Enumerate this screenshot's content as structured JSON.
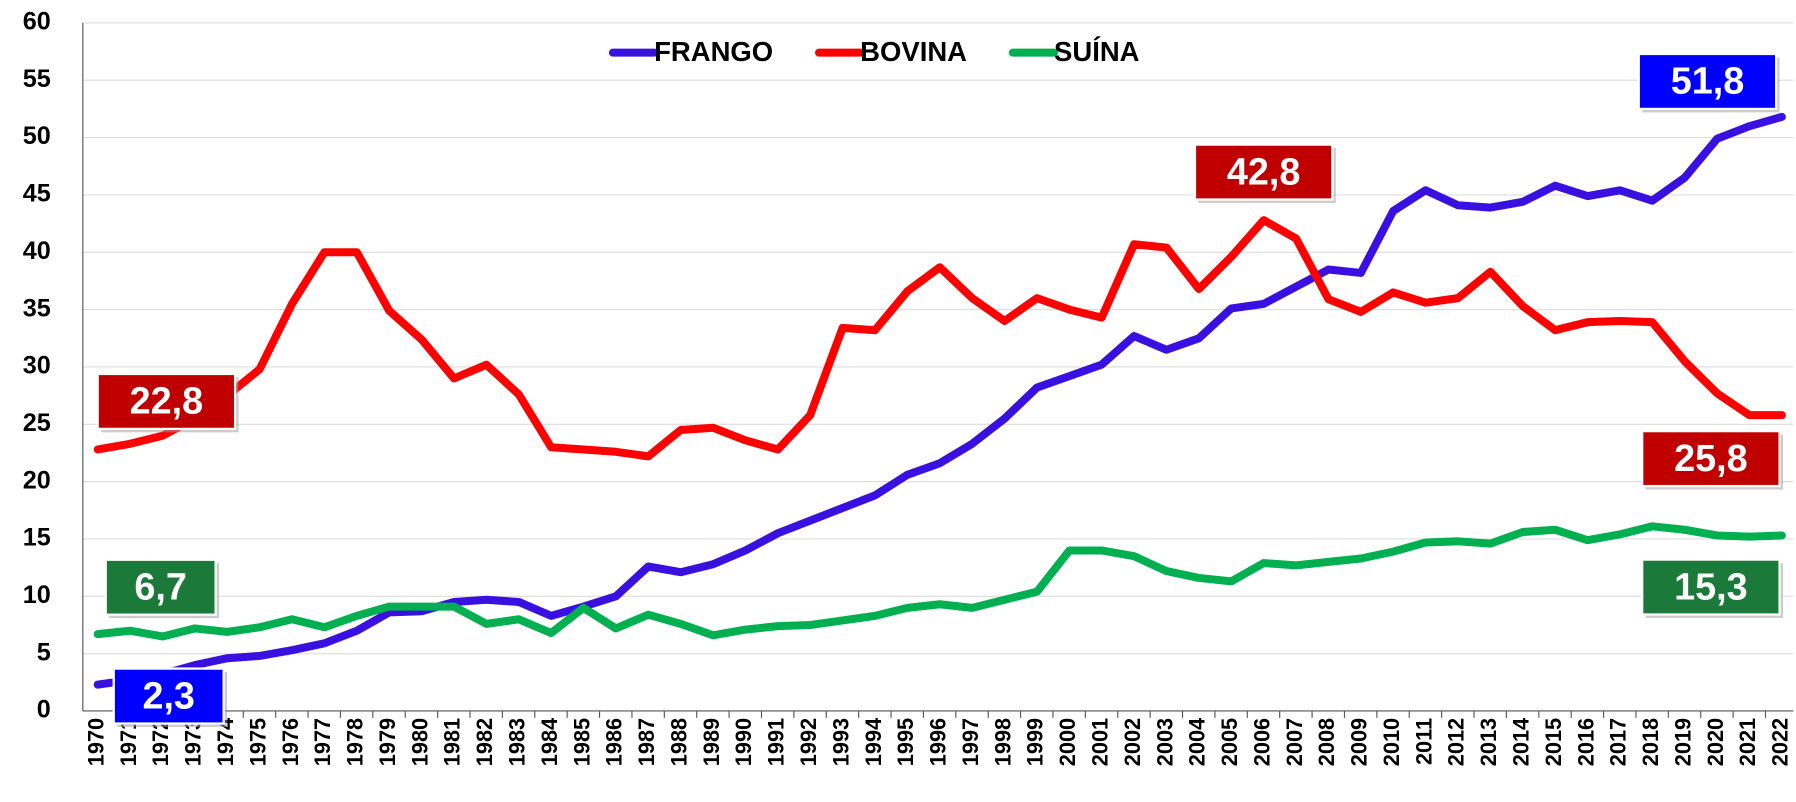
{
  "chart_data": {
    "type": "line",
    "categories": [
      "1970",
      "1971",
      "1972",
      "1973",
      "1974",
      "1975",
      "1976",
      "1977",
      "1978",
      "1979",
      "1980",
      "1981",
      "1982",
      "1983",
      "1984",
      "1985",
      "1986",
      "1987",
      "1988",
      "1989",
      "1990",
      "1991",
      "1992",
      "1993",
      "1994",
      "1995",
      "1996",
      "1997",
      "1998",
      "1999",
      "2000",
      "2001",
      "2002",
      "2003",
      "2004",
      "2005",
      "2006",
      "2007",
      "2008",
      "2009",
      "2010",
      "2011",
      "2012",
      "2013",
      "2014",
      "2015",
      "2016",
      "2017",
      "2018",
      "2019",
      "2020",
      "2021",
      "2022"
    ],
    "series": [
      {
        "name": "FRANGO",
        "color": "#3a10e0",
        "values": [
          2.3,
          2.7,
          3.2,
          4.0,
          4.6,
          4.8,
          5.3,
          5.9,
          7.0,
          8.6,
          8.7,
          9.5,
          9.7,
          9.5,
          8.3,
          9.1,
          10.0,
          12.6,
          12.1,
          12.8,
          14.0,
          15.5,
          16.6,
          17.7,
          18.8,
          20.6,
          21.6,
          23.3,
          25.5,
          28.2,
          29.2,
          30.2,
          32.7,
          31.5,
          32.5,
          35.1,
          35.5,
          37.0,
          38.5,
          38.2,
          43.6,
          45.4,
          44.1,
          43.9,
          44.4,
          45.8,
          44.9,
          45.4,
          44.5,
          46.5,
          49.9,
          51.0,
          51.8
        ],
        "value_labels": [
          "2,3",
          null,
          null,
          null,
          null,
          null,
          null,
          null,
          null,
          null,
          null,
          null,
          null,
          null,
          null,
          null,
          null,
          null,
          null,
          null,
          null,
          null,
          null,
          null,
          null,
          null,
          null,
          null,
          null,
          null,
          null,
          null,
          null,
          null,
          null,
          null,
          null,
          null,
          null,
          null,
          null,
          null,
          null,
          null,
          null,
          null,
          null,
          null,
          null,
          null,
          null,
          null,
          "51,8"
        ],
        "label_color": "#0000ff"
      },
      {
        "name": "BOVINA",
        "color": "#ff0000",
        "values": [
          22.8,
          23.3,
          24.0,
          25.5,
          27.5,
          29.8,
          35.5,
          40.0,
          40.0,
          34.9,
          32.4,
          29.0,
          30.2,
          27.6,
          23.0,
          22.8,
          22.6,
          22.2,
          24.5,
          24.7,
          23.6,
          22.8,
          25.8,
          33.4,
          33.2,
          36.6,
          38.7,
          36.0,
          34.0,
          36.0,
          35.0,
          34.3,
          40.7,
          40.4,
          36.8,
          39.6,
          42.8,
          41.2,
          35.9,
          34.8,
          36.5,
          35.6,
          36.0,
          38.3,
          35.3,
          33.2,
          33.9,
          34.0,
          33.9,
          30.5,
          27.7,
          25.8,
          25.8
        ],
        "value_labels": [
          "22,8",
          null,
          null,
          null,
          null,
          null,
          null,
          null,
          null,
          null,
          null,
          null,
          null,
          null,
          null,
          null,
          null,
          null,
          null,
          null,
          null,
          null,
          null,
          null,
          null,
          null,
          null,
          null,
          null,
          null,
          null,
          null,
          null,
          null,
          null,
          null,
          "42,8",
          null,
          null,
          null,
          null,
          null,
          null,
          null,
          null,
          null,
          null,
          null,
          null,
          null,
          null,
          null,
          "25,8"
        ],
        "label_color": "#c00000"
      },
      {
        "name": "SUÍNA",
        "color": "#00b050",
        "values": [
          6.7,
          7.0,
          6.5,
          7.2,
          6.9,
          7.3,
          8.0,
          7.3,
          8.3,
          9.1,
          9.1,
          9.1,
          7.6,
          8.0,
          6.8,
          9.0,
          7.2,
          8.4,
          7.6,
          6.6,
          7.1,
          7.4,
          7.5,
          7.9,
          8.3,
          9.0,
          9.3,
          9.0,
          9.7,
          10.4,
          14.0,
          14.0,
          13.5,
          12.2,
          11.6,
          11.3,
          12.9,
          12.7,
          13.0,
          13.3,
          13.9,
          14.7,
          14.8,
          14.6,
          15.6,
          15.8,
          14.9,
          15.4,
          16.1,
          15.8,
          15.3,
          15.2,
          15.3
        ],
        "value_labels": [
          "6,7",
          null,
          null,
          null,
          null,
          null,
          null,
          null,
          null,
          null,
          null,
          null,
          null,
          null,
          null,
          null,
          null,
          null,
          null,
          null,
          null,
          null,
          null,
          null,
          null,
          null,
          null,
          null,
          null,
          null,
          null,
          null,
          null,
          null,
          null,
          null,
          null,
          null,
          null,
          null,
          null,
          null,
          null,
          null,
          null,
          null,
          null,
          null,
          null,
          null,
          null,
          null,
          "15,3"
        ],
        "label_color": "#1b7a3a"
      }
    ],
    "ylim": [
      0,
      60
    ],
    "yticks": [
      0,
      5,
      10,
      15,
      20,
      25,
      30,
      35,
      40,
      45,
      50,
      55,
      60
    ],
    "grid": true,
    "legend": "top"
  }
}
